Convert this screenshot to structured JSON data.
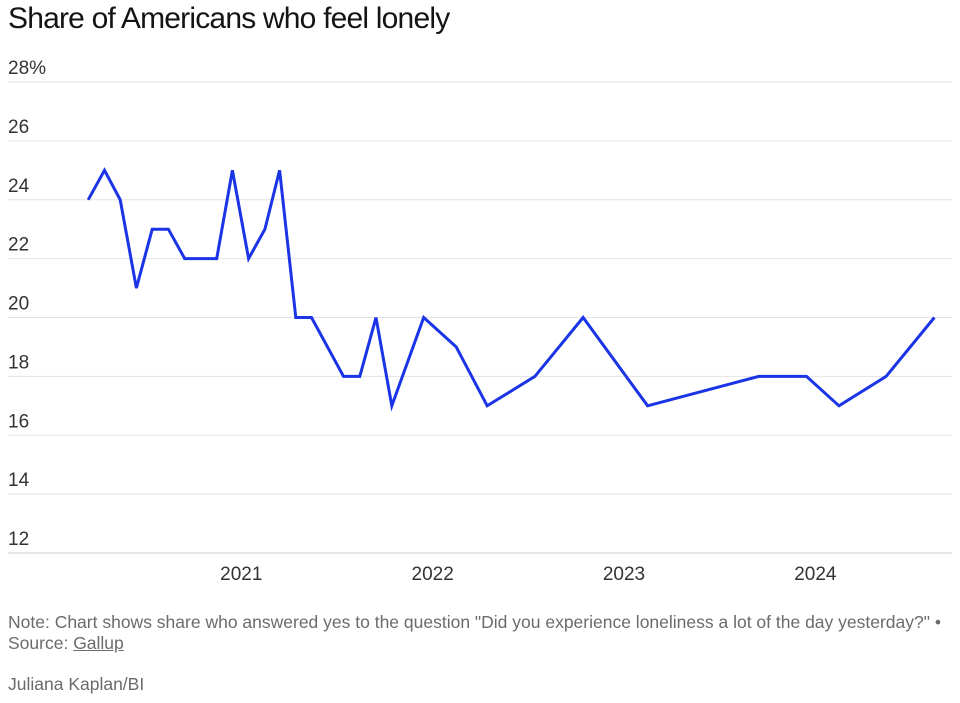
{
  "chart_data": {
    "type": "line",
    "title": "Share of Americans who feel lonely",
    "xlabel": "",
    "ylabel": "",
    "ylim": [
      12,
      28
    ],
    "xlim": [
      "2020-02-15",
      "2024-08-20"
    ],
    "y_ticks": [
      {
        "value": 28,
        "label": "28%"
      },
      {
        "value": 26,
        "label": "26"
      },
      {
        "value": 24,
        "label": "24"
      },
      {
        "value": 22,
        "label": "22"
      },
      {
        "value": 20,
        "label": "20"
      },
      {
        "value": 18,
        "label": "18"
      },
      {
        "value": 16,
        "label": "16"
      },
      {
        "value": 14,
        "label": "14"
      },
      {
        "value": 12,
        "label": "12"
      }
    ],
    "x_ticks": [
      {
        "value": "2021-01-01",
        "label": "2021"
      },
      {
        "value": "2022-01-01",
        "label": "2022"
      },
      {
        "value": "2023-01-01",
        "label": "2023"
      },
      {
        "value": "2024-01-01",
        "label": "2024"
      }
    ],
    "grid": true,
    "series": [
      {
        "color": "#1a34e6",
        "points": [
          [
            "2020-03-15",
            24
          ],
          [
            "2020-04-15",
            25
          ],
          [
            "2020-05-15",
            24
          ],
          [
            "2020-06-15",
            21
          ],
          [
            "2020-07-15",
            23
          ],
          [
            "2020-08-15",
            23
          ],
          [
            "2020-09-15",
            22
          ],
          [
            "2020-11-15",
            22
          ],
          [
            "2020-12-15",
            25
          ],
          [
            "2021-01-15",
            22
          ],
          [
            "2021-02-15",
            23
          ],
          [
            "2021-03-15",
            25
          ],
          [
            "2021-04-15",
            20
          ],
          [
            "2021-05-15",
            20
          ],
          [
            "2021-07-15",
            18
          ],
          [
            "2021-08-15",
            18
          ],
          [
            "2021-09-15",
            20
          ],
          [
            "2021-10-15",
            17
          ],
          [
            "2021-12-15",
            20
          ],
          [
            "2022-02-15",
            19
          ],
          [
            "2022-04-15",
            17
          ],
          [
            "2022-07-15",
            18
          ],
          [
            "2022-10-15",
            20
          ],
          [
            "2023-02-15",
            17
          ],
          [
            "2023-09-15",
            18
          ],
          [
            "2023-12-15",
            18
          ],
          [
            "2024-02-15",
            17
          ],
          [
            "2024-05-15",
            18
          ],
          [
            "2024-08-15",
            20
          ]
        ]
      }
    ]
  },
  "note": {
    "text": "Note: Chart shows share who answered yes to the question \"Did you experience loneliness a lot of the day yesterday?\" • Source: ",
    "source_link": "Gallup"
  },
  "credit": "Juliana Kaplan/BI"
}
